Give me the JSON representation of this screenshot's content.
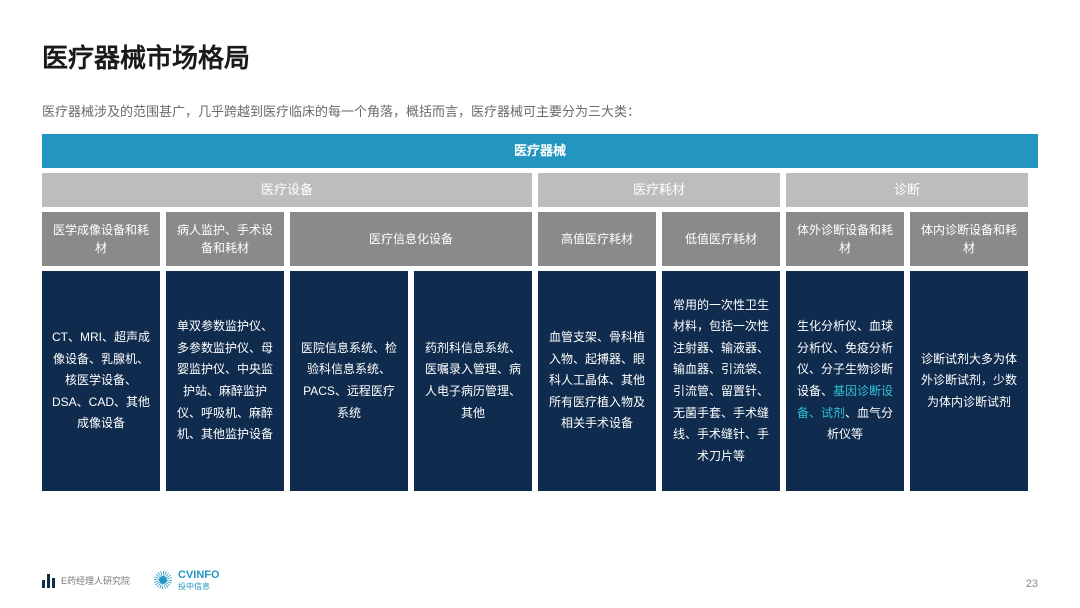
{
  "slide": {
    "title": "医疗器械市场格局",
    "subtitle": "医疗器械涉及的范围甚广，几乎跨越到医疗临床的每一个角落，概括而言，医疗器械可主要分为三大类：",
    "page_number": "23"
  },
  "colors": {
    "root_bg": "#2296c1",
    "mid_bg": "#bdbdbd",
    "sub_bg": "#8a8a8a",
    "leaf_bg": "#0f2b4d",
    "highlight": "#2fc1d6",
    "text_light": "#ffffff",
    "page_bg": "#ffffff"
  },
  "hierarchy": {
    "root": "医疗器械",
    "level2": [
      {
        "label": "医疗设备",
        "span": 4
      },
      {
        "label": "医疗耗材",
        "span": 2
      },
      {
        "label": "诊断",
        "span": 2
      }
    ],
    "level3": [
      {
        "label": "医学成像设备和耗材",
        "span": 1
      },
      {
        "label": "病人监护、手术设备和耗材",
        "span": 1
      },
      {
        "label": "医疗信息化设备",
        "span": 2
      },
      {
        "label": "高值医疗耗材",
        "span": 1
      },
      {
        "label": "低值医疗耗材",
        "span": 1
      },
      {
        "label": "体外诊断设备和耗材",
        "span": 1
      },
      {
        "label": "体内诊断设备和耗材",
        "span": 1
      }
    ],
    "leaves": [
      {
        "text": "CT、MRI、超声成像设备、乳腺机、核医学设备、DSA、CAD、其他成像设备"
      },
      {
        "text": "单双参数监护仪、多参数监护仪、母婴监护仪、中央监护站、麻醉监护仪、呼吸机、麻醉机、其他监护设备"
      },
      {
        "text": "医院信息系统、检验科信息系统、PACS、远程医疗系统"
      },
      {
        "text": "药剂科信息系统、医嘱录入管理、病人电子病历管理、其他"
      },
      {
        "text": "血管支架、骨科植入物、起搏器、眼科人工晶体、其他所有医疗植入物及相关手术设备"
      },
      {
        "text": "常用的一次性卫生材料，包括一次性注射器、输液器、输血器、引流袋、引流管、留置针、无菌手套、手术缝线、手术缝针、手术刀片等"
      },
      {
        "text_parts": [
          {
            "t": "生化分析仪、血球分析仪、免疫分析仪、分子生物诊断设备、"
          },
          {
            "t": "基因诊断设备、试剂",
            "hl": true
          },
          {
            "t": "、血气分析仪等"
          }
        ]
      },
      {
        "text": "诊断试剂大多为体外诊断试剂，少数为体内诊断试剂"
      }
    ]
  },
  "footer": {
    "logo1_text": "E药经理人研究院",
    "logo2_top": "CVINFO",
    "logo2_bottom": "投中信息"
  }
}
